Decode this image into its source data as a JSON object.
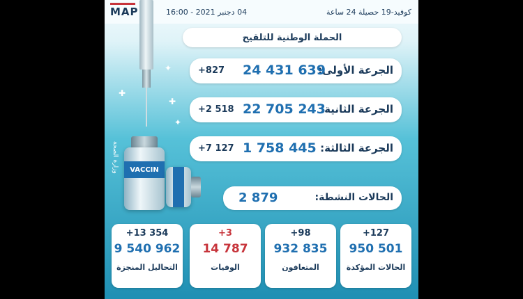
{
  "header": {
    "logo": "MAP",
    "datetime": "04 دجنبر 2021 - 16:00",
    "covid_label": "كوفيد-19 حصيلة 24 ساعة"
  },
  "campaign": {
    "title": "الحملة الوطنية للتلقيح"
  },
  "doses": [
    {
      "label": "الجرعة الأولى:",
      "value": "24 431 639",
      "increment": "+827"
    },
    {
      "label": "الجرعة الثانية:",
      "value": "22 705 243",
      "increment": "+2 518"
    },
    {
      "label": "الجرعة الثالثة:",
      "value": "1 758 445",
      "increment": "+7 127"
    }
  ],
  "active_cases": {
    "label": "الحالات النشطة:",
    "value": "2 879"
  },
  "cards": [
    {
      "increment": "+127",
      "value": "950 501",
      "label": "الحالات المؤكدة"
    },
    {
      "increment": "+98",
      "value": "932 835",
      "label": "المتعافون"
    },
    {
      "increment": "+3",
      "value": "14 787",
      "label": "الوفيات"
    },
    {
      "increment": "+13 354",
      "value": "9 540 962",
      "label": "التحاليل المنجزة"
    }
  ],
  "illustration": {
    "vial_label": "VACCIN",
    "ministry": "وزارة الصحة"
  },
  "colors": {
    "navy": "#1b3a5a",
    "blue": "#1f6fb0",
    "red": "#c7343b",
    "teal": "#1f8fb3"
  }
}
